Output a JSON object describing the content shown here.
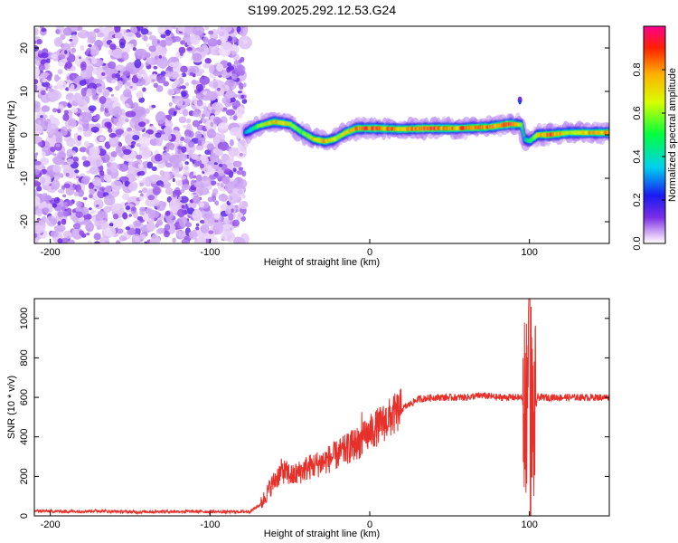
{
  "title": "S199.2025.292.12.53.G24",
  "chart_data": [
    {
      "type": "heatmap",
      "xlabel": "Height of straight line (km)",
      "ylabel": "Frequency (Hz)",
      "xlim": [
        -210,
        150
      ],
      "ylim": [
        -25,
        25
      ],
      "xticks": [
        -200,
        -100,
        0,
        100
      ],
      "yticks": [
        -20,
        -10,
        0,
        10,
        20
      ],
      "colorbar": {
        "label": "Normalized spectral amplitude",
        "range": [
          0,
          1
        ],
        "ticks": [
          "0.0",
          "0.2",
          "0.4",
          "0.6",
          "0.8"
        ]
      },
      "noise_region_km": [
        -210,
        -78
      ],
      "ridge": [
        {
          "km": -78,
          "hz": 0.5,
          "amp": 0.35
        },
        {
          "km": -70,
          "hz": 2.0,
          "amp": 0.55
        },
        {
          "km": -60,
          "hz": 3.0,
          "amp": 0.8
        },
        {
          "km": -50,
          "hz": 2.5,
          "amp": 0.7
        },
        {
          "km": -42,
          "hz": 0.5,
          "amp": 0.6
        },
        {
          "km": -35,
          "hz": -1.0,
          "amp": 0.75
        },
        {
          "km": -28,
          "hz": -1.5,
          "amp": 0.85
        },
        {
          "km": -22,
          "hz": -1.0,
          "amp": 0.7
        },
        {
          "km": -15,
          "hz": 0.5,
          "amp": 0.75
        },
        {
          "km": -8,
          "hz": 1.5,
          "amp": 0.85
        },
        {
          "km": 5,
          "hz": 1.5,
          "amp": 0.95
        },
        {
          "km": 20,
          "hz": 1.3,
          "amp": 0.8
        },
        {
          "km": 35,
          "hz": 1.5,
          "amp": 0.95
        },
        {
          "km": 55,
          "hz": 1.5,
          "amp": 0.85
        },
        {
          "km": 75,
          "hz": 1.8,
          "amp": 0.9
        },
        {
          "km": 88,
          "hz": 2.5,
          "amp": 0.95
        },
        {
          "km": 95,
          "hz": 2.3,
          "amp": 0.6
        },
        {
          "km": 97,
          "hz": -1.0,
          "amp": 0.4
        },
        {
          "km": 100,
          "hz": -1.5,
          "amp": 0.5
        },
        {
          "km": 105,
          "hz": 0.0,
          "amp": 0.75
        },
        {
          "km": 112,
          "hz": 0.0,
          "amp": 0.95
        },
        {
          "km": 125,
          "hz": 0.5,
          "amp": 0.7
        },
        {
          "km": 150,
          "hz": 0.5,
          "amp": 0.85
        }
      ]
    },
    {
      "type": "line",
      "xlabel": "Height of straight line (km)",
      "ylabel": "SNR (10 * v/v)",
      "xlim": [
        -210,
        150
      ],
      "ylim": [
        0,
        1100
      ],
      "xticks": [
        -200,
        -100,
        0,
        100
      ],
      "yticks": [
        0,
        200,
        400,
        600,
        800,
        1000
      ],
      "color": "#e8302a",
      "series": [
        {
          "name": "SNR",
          "x": [
            -210,
            -190,
            -170,
            -150,
            -130,
            -110,
            -90,
            -75,
            -68,
            -62,
            -55,
            -48,
            -40,
            -30,
            -20,
            -10,
            -5,
            0,
            10,
            20,
            30,
            40,
            50,
            60,
            70,
            80,
            90,
            95,
            98,
            100,
            102,
            105,
            110,
            120,
            130,
            140,
            150
          ],
          "y": [
            25,
            22,
            25,
            20,
            22,
            22,
            20,
            22,
            60,
            150,
            230,
            200,
            240,
            270,
            310,
            360,
            380,
            420,
            480,
            540,
            590,
            600,
            600,
            600,
            610,
            600,
            600,
            600,
            500,
            900,
            450,
            600,
            600,
            600,
            600,
            600,
            600
          ]
        }
      ]
    }
  ]
}
